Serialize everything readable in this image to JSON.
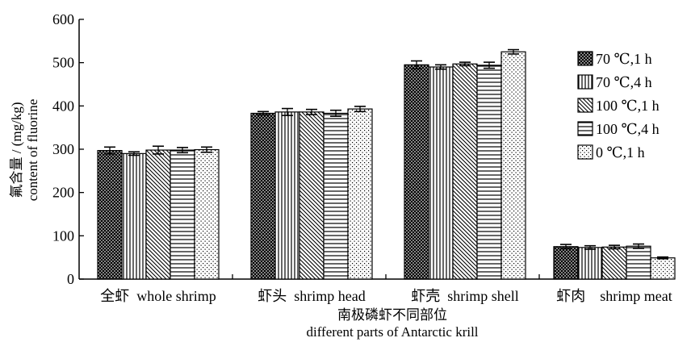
{
  "chart_data": {
    "type": "bar",
    "xlabel": "南极磷虾不同部位",
    "xlabel_en": "different parts of Antarctic krill",
    "ylabel": "氟含量 / (mg/kg)",
    "ylabel_en": "content of fluorine",
    "ylim": [
      0,
      600
    ],
    "yticks": [
      0,
      100,
      200,
      300,
      400,
      500,
      600
    ],
    "categories": [
      "全虾  whole shrimp",
      "虾头  shrimp head",
      "虾壳  shrimp shell",
      "虾肉    shrimp meat"
    ],
    "series": [
      {
        "name": "70 ℃,1 h",
        "pattern": "crosshatch",
        "values": [
          297,
          383,
          495,
          75
        ],
        "errors": [
          8,
          4,
          9,
          5
        ]
      },
      {
        "name": "70 ℃,4 h",
        "pattern": "vertical",
        "values": [
          290,
          386,
          490,
          73
        ],
        "errors": [
          4,
          8,
          5,
          4
        ]
      },
      {
        "name": "100 ℃,1 h",
        "pattern": "diagonal",
        "values": [
          298,
          386,
          497,
          74
        ],
        "errors": [
          9,
          6,
          4,
          4
        ]
      },
      {
        "name": "100 ℃,4 h",
        "pattern": "horizontal",
        "values": [
          298,
          383,
          494,
          76
        ],
        "errors": [
          6,
          7,
          7,
          5
        ]
      },
      {
        "name": "0 ℃,1 h",
        "pattern": "dots",
        "values": [
          299,
          393,
          525,
          49
        ],
        "errors": [
          6,
          6,
          5,
          2
        ]
      }
    ],
    "legend": "right",
    "grid": false
  }
}
